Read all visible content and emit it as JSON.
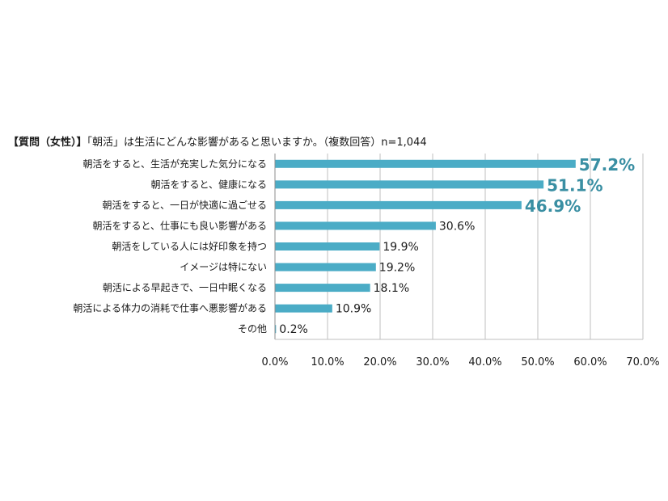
{
  "header": {
    "question_prefix": "【質問",
    "question_tag": "（女性）】",
    "question_text": "「朝活」は生活にどんな影響があると思いますか。（複数回答）n=1,044"
  },
  "chart_data": {
    "type": "bar",
    "orientation": "horizontal",
    "categories": [
      "朝活をすると、生活が充実した気分になる",
      "朝活をすると、健康になる",
      "朝活をすると、一日が快適に過ごせる",
      "朝活をすると、仕事にも良い影響がある",
      "朝活をしている人には好印象を持つ",
      "イメージは特にない",
      "朝活による早起きで、一日中眠くなる",
      "朝活による体力の消耗で仕事へ悪影響がある",
      "その他"
    ],
    "values": [
      57.2,
      51.1,
      46.9,
      30.6,
      19.9,
      19.2,
      18.1,
      10.9,
      0.2
    ],
    "value_labels": [
      "57.2%",
      "51.1%",
      "46.9%",
      "30.6%",
      "19.9%",
      "19.2%",
      "18.1%",
      "10.9%",
      "0.2%"
    ],
    "highlight_top": 3,
    "xlim": [
      0,
      70
    ],
    "xticks": [
      0,
      10,
      20,
      30,
      40,
      50,
      60,
      70
    ],
    "xtick_labels": [
      "0.0%",
      "10.0%",
      "20.0%",
      "30.0%",
      "40.0%",
      "50.0%",
      "60.0%",
      "70.0%"
    ],
    "grid": true,
    "bar_color": "#4bacc6",
    "highlight_color": "#3a8fa3",
    "grid_color": "#bfbfbf"
  }
}
